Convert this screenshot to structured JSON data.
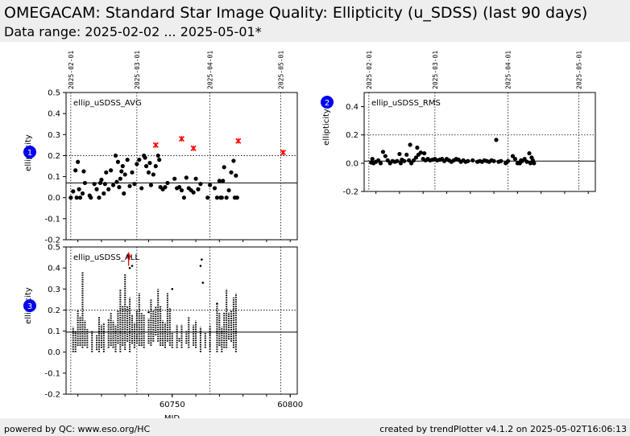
{
  "header": {
    "title": "OMEGACAM: Standard Star Image Quality: Ellipticity (u_SDSS) (last 90 days)",
    "subtitle": "Data range: 2025-02-02 ... 2025-05-01*"
  },
  "footer": {
    "left": "powered by QC: www.eso.org/HC",
    "right": "created by trendPlotter v4.1.2 on 2025-05-02T16:06:13"
  },
  "colors": {
    "points": "#000000",
    "outlier": "#ff0000",
    "badge": "#0000ee",
    "header_bg": "#eeeeee"
  },
  "chart_data": [
    {
      "id": 1,
      "type": "scatter",
      "badge": "1",
      "panel_label": "ellip_uSDSS_AVG",
      "ylabel": "ellipticity",
      "xlim": [
        60705,
        60803
      ],
      "ylim": [
        -0.2,
        0.5
      ],
      "yticks": [
        "0.5",
        "0.4",
        "0.3",
        "0.2",
        "0.1",
        "0.0",
        "-0.1",
        "-0.2"
      ],
      "reference_line": 0.07,
      "grid_line": 0.2,
      "date_markers": [
        {
          "label": "2025-02-01",
          "mjd": 60707
        },
        {
          "label": "2025-03-01",
          "mjd": 60735
        },
        {
          "label": "2025-04-01",
          "mjd": 60766
        },
        {
          "label": "2025-05-01",
          "mjd": 60796
        }
      ],
      "points": [
        [
          60707,
          0.0
        ],
        [
          60708,
          0.03
        ],
        [
          60709,
          0.13
        ],
        [
          60709.5,
          0.0
        ],
        [
          60710,
          0.17
        ],
        [
          60710.5,
          0.04
        ],
        [
          60711,
          0.0
        ],
        [
          60712,
          0.02
        ],
        [
          60712.5,
          0.125
        ],
        [
          60713,
          0.07
        ],
        [
          60715,
          0.01
        ],
        [
          60715.5,
          0.0
        ],
        [
          60717,
          0.065
        ],
        [
          60718,
          0.04
        ],
        [
          60719,
          0.0
        ],
        [
          60719.5,
          0.07
        ],
        [
          60720,
          0.085
        ],
        [
          60721,
          0.02
        ],
        [
          60721.5,
          0.065
        ],
        [
          60722,
          0.12
        ],
        [
          60723,
          0.04
        ],
        [
          60724,
          0.13
        ],
        [
          60725,
          0.06
        ],
        [
          60726,
          0.2
        ],
        [
          60726.5,
          0.075
        ],
        [
          60727,
          0.17
        ],
        [
          60727.5,
          0.05
        ],
        [
          60728,
          0.09
        ],
        [
          60728.5,
          0.125
        ],
        [
          60729,
          0.15
        ],
        [
          60729.5,
          0.02
        ],
        [
          60730,
          0.11
        ],
        [
          60731,
          0.18
        ],
        [
          60732,
          0.055
        ],
        [
          60733,
          0.12
        ],
        [
          60734,
          0.065
        ],
        [
          60735,
          0.16
        ],
        [
          60736,
          0.18
        ],
        [
          60737,
          0.045
        ],
        [
          60738,
          0.2
        ],
        [
          60738.5,
          0.19
        ],
        [
          60739,
          0.15
        ],
        [
          60740,
          0.12
        ],
        [
          60740.5,
          0.165
        ],
        [
          60741,
          0.06
        ],
        [
          60742,
          0.11
        ],
        [
          60743,
          0.15
        ],
        [
          60744,
          0.2
        ],
        [
          60744.5,
          0.18
        ],
        [
          60745,
          0.05
        ],
        [
          60746,
          0.04
        ],
        [
          60747,
          0.05
        ],
        [
          60748,
          0.07
        ],
        [
          60751,
          0.09
        ],
        [
          60752,
          0.045
        ],
        [
          60753,
          0.05
        ],
        [
          60754,
          0.035
        ],
        [
          60755,
          0.0
        ],
        [
          60756,
          0.095
        ],
        [
          60757,
          0.045
        ],
        [
          60758,
          0.035
        ],
        [
          60759,
          0.025
        ],
        [
          60760,
          0.09
        ],
        [
          60761,
          0.04
        ],
        [
          60762,
          0.065
        ],
        [
          60765,
          0.0
        ],
        [
          60766,
          0.06
        ],
        [
          60768,
          0.045
        ],
        [
          60769,
          0.0
        ],
        [
          60770,
          0.08
        ],
        [
          60770.5,
          0.0
        ],
        [
          60771,
          0.0
        ],
        [
          60771.5,
          0.08
        ],
        [
          60772,
          0.145
        ],
        [
          60773,
          0.0
        ],
        [
          60774,
          0.035
        ],
        [
          60775,
          0.12
        ],
        [
          60776,
          0.175
        ],
        [
          60776.5,
          0.0
        ],
        [
          60777,
          0.105
        ],
        [
          60777.5,
          0.0
        ]
      ],
      "outliers": [
        [
          60743,
          0.25
        ],
        [
          60754,
          0.28
        ],
        [
          60759,
          0.235
        ],
        [
          60778,
          0.27
        ],
        [
          60797,
          0.215
        ]
      ]
    },
    {
      "id": 2,
      "type": "scatter",
      "badge": "2",
      "panel_label": "ellip_uSDSS_RMS",
      "ylabel": "ellipticity",
      "xlim": [
        60705,
        60803
      ],
      "ylim": [
        -0.2,
        0.5
      ],
      "yticks": [
        "0.4",
        "0.2",
        "0.0",
        "-0.2"
      ],
      "reference_line": 0.015,
      "grid_line": 0.2,
      "date_markers": [
        {
          "label": "2025-02-01",
          "mjd": 60707
        },
        {
          "label": "2025-03-01",
          "mjd": 60735
        },
        {
          "label": "2025-04-01",
          "mjd": 60766
        },
        {
          "label": "2025-05-01",
          "mjd": 60796
        }
      ],
      "points": [
        [
          60708,
          0.005
        ],
        [
          60708.5,
          0.03
        ],
        [
          60709,
          0.0
        ],
        [
          60710,
          0.01
        ],
        [
          60711,
          0.02
        ],
        [
          60712,
          0.0
        ],
        [
          60713,
          0.08
        ],
        [
          60714,
          0.05
        ],
        [
          60715,
          0.02
        ],
        [
          60716,
          0.0
        ],
        [
          60717,
          0.015
        ],
        [
          60718,
          0.01
        ],
        [
          60719,
          0.015
        ],
        [
          60720,
          0.065
        ],
        [
          60720.5,
          0.0
        ],
        [
          60721,
          0.025
        ],
        [
          60722,
          0.015
        ],
        [
          60723,
          0.06
        ],
        [
          60724,
          0.02
        ],
        [
          60724.5,
          0.13
        ],
        [
          60725,
          0.0
        ],
        [
          60726,
          0.02
        ],
        [
          60727,
          0.04
        ],
        [
          60727.5,
          0.11
        ],
        [
          60728,
          0.06
        ],
        [
          60729,
          0.075
        ],
        [
          60730,
          0.03
        ],
        [
          60730.5,
          0.07
        ],
        [
          60731,
          0.02
        ],
        [
          60732,
          0.03
        ],
        [
          60733,
          0.02
        ],
        [
          60734,
          0.025
        ],
        [
          60735,
          0.03
        ],
        [
          60736,
          0.02
        ],
        [
          60737,
          0.025
        ],
        [
          60738,
          0.03
        ],
        [
          60739,
          0.015
        ],
        [
          60740,
          0.03
        ],
        [
          60741,
          0.02
        ],
        [
          60742,
          0.01
        ],
        [
          60743,
          0.02
        ],
        [
          60744,
          0.03
        ],
        [
          60745,
          0.025
        ],
        [
          60746,
          0.01
        ],
        [
          60747,
          0.02
        ],
        [
          60748,
          0.01
        ],
        [
          60749,
          0.015
        ],
        [
          60751,
          0.02
        ],
        [
          60753,
          0.01
        ],
        [
          60754,
          0.015
        ],
        [
          60755,
          0.01
        ],
        [
          60756,
          0.02
        ],
        [
          60757,
          0.015
        ],
        [
          60758,
          0.01
        ],
        [
          60759,
          0.02
        ],
        [
          60760,
          0.015
        ],
        [
          60761,
          0.165
        ],
        [
          60762,
          0.01
        ],
        [
          60763,
          0.015
        ],
        [
          60765,
          0.0
        ],
        [
          60766,
          0.015
        ],
        [
          60768,
          0.05
        ],
        [
          60769,
          0.03
        ],
        [
          60770,
          0.0
        ],
        [
          60771,
          0.0
        ],
        [
          60771.5,
          0.02
        ],
        [
          60772,
          0.015
        ],
        [
          60773,
          0.03
        ],
        [
          60774,
          0.01
        ],
        [
          60775,
          0.07
        ],
        [
          60775.5,
          0.0
        ],
        [
          60776,
          0.04
        ],
        [
          60776.5,
          0.02
        ],
        [
          60777,
          0.0
        ]
      ]
    },
    {
      "id": 3,
      "type": "scatter",
      "badge": "3",
      "panel_label": "ellip_uSDSS_ALL",
      "ylabel": "ellipticity",
      "xlabel": "MJD",
      "xlim": [
        60705,
        60803
      ],
      "ylim": [
        -0.2,
        0.5
      ],
      "yticks": [
        "0.5",
        "0.4",
        "0.3",
        "0.2",
        "0.1",
        "0.0",
        "-0.1",
        "-0.2"
      ],
      "xticks": [
        {
          "label": "60750",
          "mjd": 60750
        },
        {
          "label": "60800",
          "mjd": 60800
        }
      ],
      "reference_line": 0.095,
      "grid_line": 0.2,
      "date_markers": [
        {
          "mjd": 60707
        },
        {
          "mjd": 60735
        },
        {
          "mjd": 60766
        },
        {
          "mjd": 60796
        }
      ],
      "clusters": [
        [
          60708,
          0.0,
          0.12
        ],
        [
          60709,
          0.0,
          0.1
        ],
        [
          60710,
          0.03,
          0.2
        ],
        [
          60711,
          0.03,
          0.17
        ],
        [
          60712,
          0.02,
          0.38
        ],
        [
          60713,
          0.03,
          0.15
        ],
        [
          60714,
          0.02,
          0.11
        ],
        [
          60716,
          0.0,
          0.1
        ],
        [
          60718,
          0.01,
          0.08
        ],
        [
          60719,
          0.0,
          0.17
        ],
        [
          60720,
          0.02,
          0.13
        ],
        [
          60721,
          0.0,
          0.14
        ],
        [
          60723,
          0.02,
          0.16
        ],
        [
          60724,
          0.03,
          0.19
        ],
        [
          60725,
          0.02,
          0.15
        ],
        [
          60726,
          0.0,
          0.13
        ],
        [
          60727,
          0.04,
          0.2
        ],
        [
          60728,
          0.0,
          0.3
        ],
        [
          60729,
          0.03,
          0.22
        ],
        [
          60730,
          0.01,
          0.37
        ],
        [
          60731,
          0.05,
          0.22
        ],
        [
          60732,
          0.0,
          0.26
        ],
        [
          60733,
          0.04,
          0.18
        ],
        [
          60734,
          0.02,
          0.14
        ],
        [
          60735,
          0.04,
          0.2
        ],
        [
          60736,
          0.03,
          0.28
        ],
        [
          60737,
          0.03,
          0.19
        ],
        [
          60738,
          0.02,
          0.18
        ],
        [
          60740,
          0.04,
          0.16
        ],
        [
          60741,
          0.03,
          0.25
        ],
        [
          60742,
          0.05,
          0.2
        ],
        [
          60743,
          0.08,
          0.22
        ],
        [
          60744,
          0.05,
          0.3
        ],
        [
          60745,
          0.03,
          0.22
        ],
        [
          60746,
          0.03,
          0.15
        ],
        [
          60747,
          0.02,
          0.14
        ],
        [
          60748,
          0.05,
          0.28
        ],
        [
          60749,
          0.03,
          0.21
        ],
        [
          60750,
          0.02,
          0.09
        ],
        [
          60752,
          0.02,
          0.13
        ],
        [
          60753,
          0.05,
          0.07
        ],
        [
          60754,
          0.02,
          0.13
        ],
        [
          60756,
          0.04,
          0.1
        ],
        [
          60757,
          0.02,
          0.17
        ],
        [
          60759,
          0.03,
          0.13
        ],
        [
          60760,
          0.02,
          0.15
        ],
        [
          60762,
          0.0,
          0.12
        ],
        [
          60764,
          0.02,
          0.09
        ],
        [
          60766,
          0.0,
          0.13
        ],
        [
          60769,
          0.0,
          0.22
        ],
        [
          60770,
          0.03,
          0.19
        ],
        [
          60771,
          0.0,
          0.12
        ],
        [
          60772,
          0.02,
          0.19
        ],
        [
          60773,
          0.02,
          0.3
        ],
        [
          60774,
          0.06,
          0.19
        ],
        [
          60775,
          0.05,
          0.2
        ],
        [
          60776,
          0.02,
          0.26
        ],
        [
          60777,
          0.0,
          0.28
        ]
      ],
      "scatter": [
        [
          60732,
          0.4
        ],
        [
          60733,
          0.41
        ],
        [
          60740,
          0.19
        ],
        [
          60750,
          0.3
        ],
        [
          60762,
          0.41
        ],
        [
          60762.5,
          0.44
        ],
        [
          60763,
          0.33
        ],
        [
          60769,
          0.23
        ]
      ],
      "outlier": {
        "mjd": 60731.5,
        "y": 0.465,
        "err_low": 0.41
      }
    }
  ]
}
